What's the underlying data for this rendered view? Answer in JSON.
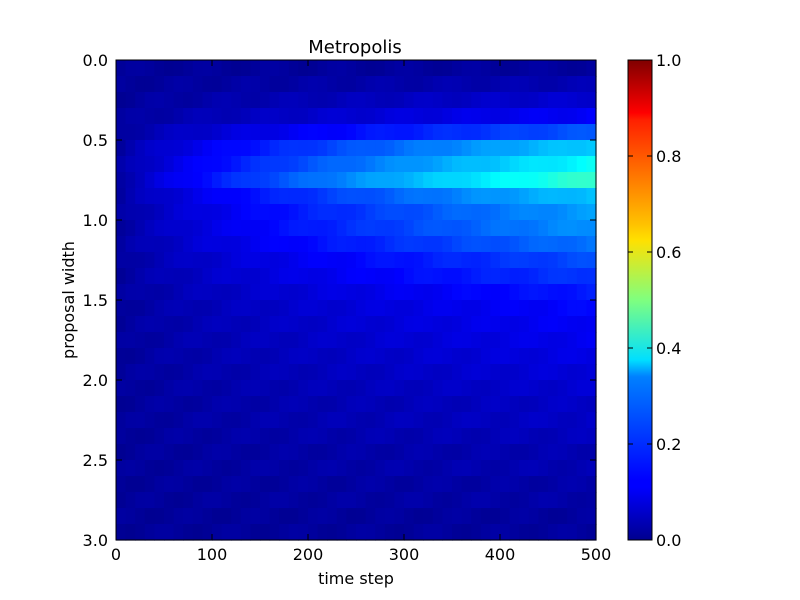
{
  "chart_data": {
    "type": "heatmap",
    "title": "Metropolis",
    "xlabel": "time step",
    "ylabel": "proposal width",
    "xlim": [
      0,
      500
    ],
    "ylim": [
      3.0,
      0.0
    ],
    "xticks": [
      "0",
      "100",
      "200",
      "300",
      "400",
      "500"
    ],
    "xtick_values": [
      0,
      100,
      200,
      300,
      400,
      500
    ],
    "yticks": [
      "0.0",
      "0.5",
      "1.0",
      "1.5",
      "2.0",
      "2.5",
      "3.0"
    ],
    "ytick_values": [
      0.0,
      0.5,
      1.0,
      1.5,
      2.0,
      2.5,
      3.0
    ],
    "colormap": "jet",
    "colorbar": {
      "range": [
        0.0,
        1.0
      ],
      "ticks": [
        "0.0",
        "0.2",
        "0.4",
        "0.6",
        "0.8",
        "1.0"
      ],
      "tick_values": [
        0.0,
        0.2,
        0.4,
        0.6,
        0.8,
        1.0
      ]
    },
    "grid": false,
    "grid_shape": {
      "rows": 30,
      "cols": 50
    },
    "row_value_at_end": [
      0.03,
      0.05,
      0.08,
      0.12,
      0.21,
      0.33,
      0.38,
      0.43,
      0.32,
      0.28,
      0.27,
      0.24,
      0.2,
      0.18,
      0.15,
      0.13,
      0.12,
      0.11,
      0.1,
      0.09,
      0.08,
      0.07,
      0.07,
      0.06,
      0.05,
      0.05,
      0.04,
      0.04,
      0.03,
      0.03
    ]
  }
}
